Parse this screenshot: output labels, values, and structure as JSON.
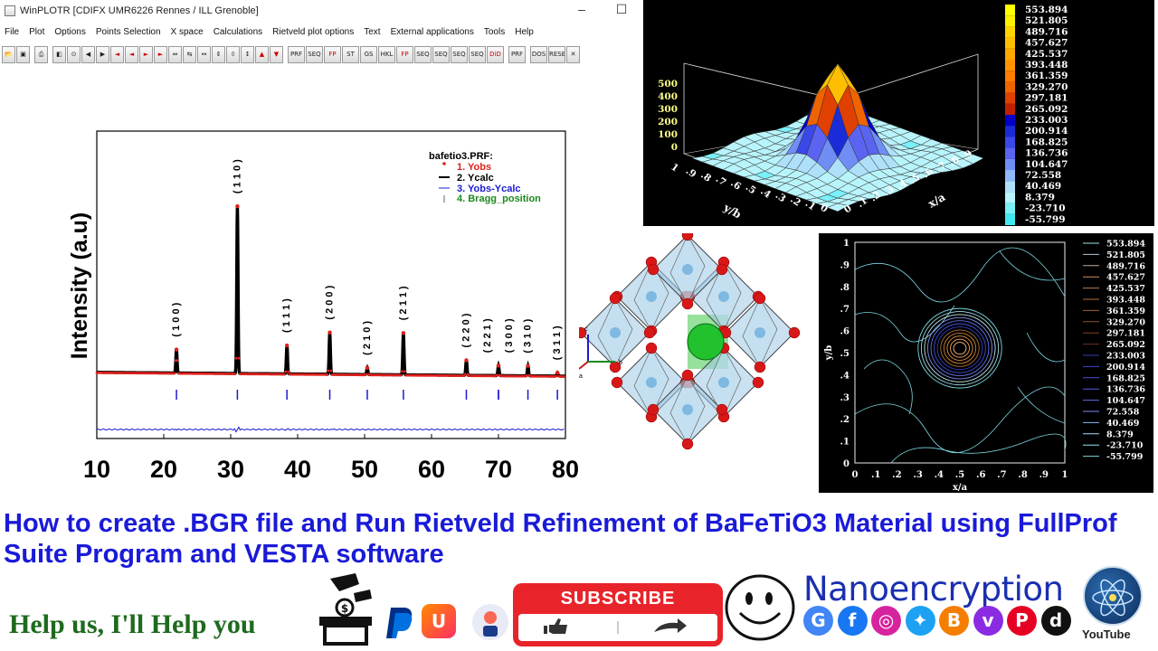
{
  "window": {
    "title": "WinPLOTR [CDIFX UMR6226 Rennes / ILL Grenoble]",
    "controls": [
      "–",
      "☐",
      "✕"
    ]
  },
  "menu": [
    "File",
    "Plot",
    "Options",
    "Points Selection",
    "X space",
    "Calculations",
    "Rietveld plot options",
    "Text",
    "External applications",
    "Tools",
    "Help"
  ],
  "toolbar": [
    "PRF",
    "SEQ",
    "FP",
    "ST",
    "GS",
    "HKL",
    "FP",
    "SEQ",
    "SEQ",
    "SEQ",
    "SEQ",
    "DiD",
    "PRF",
    "DOS",
    "RESET"
  ],
  "xrd_plot": {
    "ylabel": "Intensity (a.u)",
    "legend_title": "bafetio3.PRF:",
    "legend": [
      "1. Yobs",
      "2. Ycalc",
      "3. Yobs-Ycalc",
      "4. Bragg_position"
    ],
    "colors": {
      "yobs": "#e0201c",
      "ycalc": "#000000",
      "diff": "#1a1ad0",
      "bragg": "#1a1ad0",
      "bragg_label": "#1c8a1c"
    }
  },
  "chart_data": [
    {
      "type": "line",
      "title": "",
      "xlabel": "",
      "ylabel": "Intensity (a.u)",
      "x_ticks": [
        10,
        20,
        30,
        40,
        50,
        60,
        70,
        80
      ],
      "xlim": [
        10,
        80
      ],
      "peaks": [
        {
          "two_theta": 21.9,
          "hkl": "( 1 0 0 )",
          "rel_intensity": 0.14
        },
        {
          "two_theta": 31.0,
          "hkl": "( 1 1 0 )",
          "rel_intensity": 1.0
        },
        {
          "two_theta": 38.4,
          "hkl": "( 1 1 1 )",
          "rel_intensity": 0.17
        },
        {
          "two_theta": 44.8,
          "hkl": "( 2 0 0 )",
          "rel_intensity": 0.25
        },
        {
          "two_theta": 50.4,
          "hkl": "( 2 1 0 )",
          "rel_intensity": 0.04
        },
        {
          "two_theta": 55.8,
          "hkl": "( 2 1 1 )",
          "rel_intensity": 0.25
        },
        {
          "two_theta": 65.2,
          "hkl": "( 2 2 0 )",
          "rel_intensity": 0.09
        },
        {
          "two_theta": 70.0,
          "hkl": "( 2 2 1 )",
          "rel_intensity": 0.03
        },
        {
          "two_theta": 70.0,
          "hkl": "( 3 0 0 )",
          "rel_intensity": 0.03
        },
        {
          "two_theta": 74.4,
          "hkl": "( 3 1 0 )",
          "rel_intensity": 0.06
        },
        {
          "two_theta": 78.8,
          "hkl": "( 3 1 1 )",
          "rel_intensity": 0.02
        }
      ],
      "series": [
        {
          "name": "1. Yobs"
        },
        {
          "name": "2. Ycalc"
        },
        {
          "name": "3. Yobs-Ycalc"
        },
        {
          "name": "4. Bragg_position"
        }
      ]
    },
    {
      "type": "surface",
      "xlabel": "x/a",
      "ylabel": "y/b",
      "z_ticks": [
        0,
        100,
        200,
        300,
        400,
        500
      ],
      "x_ticks": [
        "0",
        ".1",
        ".2",
        ".3",
        ".4",
        ".5",
        ".6",
        ".7",
        ".8",
        ".9"
      ],
      "y_ticks": [
        "1",
        ".9",
        ".8",
        ".7",
        ".6",
        ".5",
        ".4",
        ".3",
        ".2",
        ".1",
        "0"
      ],
      "colorbar": [
        "553.894",
        "521.805",
        "489.716",
        "457.627",
        "425.537",
        "393.448",
        "361.359",
        "329.270",
        "297.181",
        "265.092",
        "233.003",
        "200.914",
        "168.825",
        "136.736",
        "104.647",
        "72.558",
        "40.469",
        "8.379",
        "-23.710",
        "-55.799"
      ]
    },
    {
      "type": "contour",
      "xlabel": "x/a",
      "ylabel": "y/b",
      "x_ticks": [
        "0",
        ".1",
        ".2",
        ".3",
        ".4",
        ".5",
        ".6",
        ".7",
        ".8",
        ".9",
        "1"
      ],
      "y_ticks": [
        "1",
        ".9",
        ".8",
        ".7",
        ".6",
        ".5",
        ".4",
        ".3",
        ".2",
        ".1",
        "0"
      ],
      "levels": [
        "553.894",
        "521.805",
        "489.716",
        "457.627",
        "425.537",
        "393.448",
        "361.359",
        "329.270",
        "297.181",
        "265.092",
        "233.003",
        "200.914",
        "168.825",
        "136.736",
        "104.647",
        "72.558",
        "40.469",
        "8.379",
        "-23.710",
        "-55.799"
      ]
    }
  ],
  "structure": {
    "axes": [
      "c",
      "a",
      "b"
    ]
  },
  "headline": "How to create .BGR file and Run Rietveld Refinement of BaFeTiO3 Material using FullProf Suite Program and VESTA software",
  "footer": {
    "help_text": "Help us, I'll Help you",
    "subscribe": "SUBSCRIBE",
    "brand": "Nanoencryption",
    "youtube": "YouTube",
    "socials": [
      {
        "letter": "G",
        "color": "#4285f4"
      },
      {
        "letter": "f",
        "color": "#1877f2"
      },
      {
        "letter": "◎",
        "color": "#d6249f"
      },
      {
        "letter": "✦",
        "color": "#1da1f2"
      },
      {
        "letter": "B",
        "color": "#f57d00"
      },
      {
        "letter": "v",
        "color": "#8a2be2"
      },
      {
        "letter": "P",
        "color": "#e60023"
      },
      {
        "letter": "d",
        "color": "#111111"
      }
    ]
  }
}
